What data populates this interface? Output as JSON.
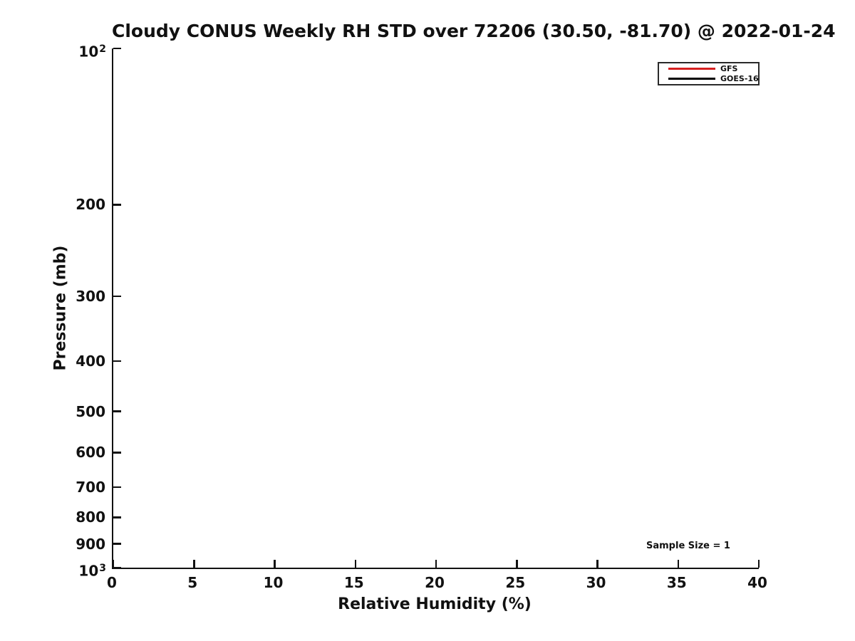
{
  "chart_data": {
    "type": "line",
    "title": "Cloudy CONUS Weekly RH STD over 72206 (30.50, -81.70) @ 2022-01-24",
    "xlabel": "Relative Humidity (%)",
    "ylabel": "Pressure (mb)",
    "x_scale": "linear",
    "y_scale": "log",
    "y_inverted_pressure_axis": true,
    "xlim": [
      0,
      40
    ],
    "ylim": [
      100,
      1000
    ],
    "x_ticks": [
      {
        "value": 0,
        "label": "0"
      },
      {
        "value": 5,
        "label": "5"
      },
      {
        "value": 10,
        "label": "10"
      },
      {
        "value": 15,
        "label": "15"
      },
      {
        "value": 20,
        "label": "20"
      },
      {
        "value": 25,
        "label": "25"
      },
      {
        "value": 30,
        "label": "30"
      },
      {
        "value": 35,
        "label": "35"
      },
      {
        "value": 40,
        "label": "40"
      }
    ],
    "y_ticks": [
      {
        "value": 100,
        "base": "10",
        "exp": "2"
      },
      {
        "value": 200,
        "label": "200"
      },
      {
        "value": 300,
        "label": "300"
      },
      {
        "value": 400,
        "label": "400"
      },
      {
        "value": 500,
        "label": "500"
      },
      {
        "value": 600,
        "label": "600"
      },
      {
        "value": 700,
        "label": "700"
      },
      {
        "value": 800,
        "label": "800"
      },
      {
        "value": 900,
        "label": "900"
      },
      {
        "value": 1000,
        "base": "10",
        "exp": "3"
      }
    ],
    "series": [
      {
        "name": "GFS",
        "color": "#d62020",
        "points": []
      },
      {
        "name": "GOES-16",
        "color": "#000000",
        "points": []
      }
    ],
    "legend_position": "top-right",
    "grid": false,
    "annotations": [
      {
        "text": "Sample Size = 1"
      }
    ]
  },
  "legend": {
    "items": [
      {
        "label": "GFS",
        "color": "#d62020"
      },
      {
        "label": "GOES-16",
        "color": "#000000"
      }
    ]
  },
  "annotation": {
    "sample_size_text": "Sample Size = 1"
  }
}
